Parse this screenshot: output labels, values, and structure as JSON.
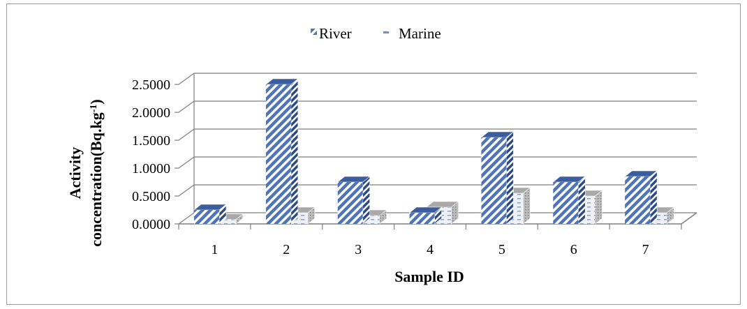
{
  "chart_data": {
    "type": "bar",
    "title": "",
    "xlabel": "Sample ID",
    "ylabel_lines": [
      "Activity",
      "concentration(Bq.kg",
      "-1",
      ")"
    ],
    "categories": [
      "1",
      "2",
      "3",
      "4",
      "5",
      "6",
      "7"
    ],
    "series": [
      {
        "name": "River",
        "values": [
          0.25,
          2.5,
          0.75,
          0.2,
          1.55,
          0.75,
          0.85
        ]
      },
      {
        "name": "Marine",
        "values": [
          0.08,
          0.2,
          0.15,
          0.3,
          0.55,
          0.5,
          0.2
        ]
      }
    ],
    "ylim": [
      0,
      2.5
    ],
    "yticks": [
      0,
      0.5,
      1,
      1.5,
      2,
      2.5
    ],
    "ytick_labels": [
      "0.0000",
      "0.5000",
      "1.0000",
      "1.5000",
      "2.0000",
      "2.5000"
    ],
    "grid": true,
    "legend_position": "top",
    "style": "3d-clustered-column",
    "colors": {
      "river_front": "#4f74b8",
      "river_top": "#3a5da0",
      "river_side": "#2c4a86",
      "marine_front": "#c9d3e3",
      "marine_top": "#a9a9a9",
      "marine_side": "#8f8f8f",
      "grid": "#7f7f7f",
      "frame": "#9a9a9a"
    }
  }
}
